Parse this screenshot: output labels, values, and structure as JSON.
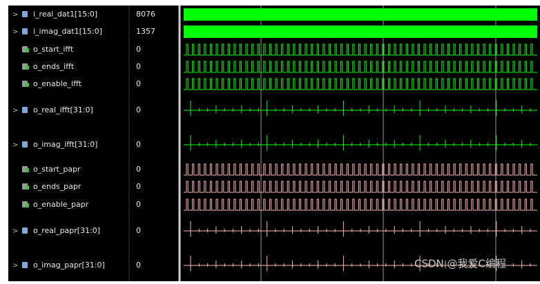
{
  "signals": [
    {
      "name": "i_real_dat1[15:0]",
      "value": 8076
    },
    {
      "name": "i_imag_dat1[15:0]",
      "value": 1357
    },
    {
      "name": "o_start_ifft",
      "value": 0
    },
    {
      "name": "o_ends_ifft",
      "value": 0
    },
    {
      "name": "o_enable_ifft",
      "value": 0
    },
    {
      "name": "o_real_ifft[31:0]",
      "value": 0
    },
    {
      "name": "o_imag_ifft[31:0]",
      "value": 0
    },
    {
      "name": "o_start_papr",
      "value": 0
    },
    {
      "name": "o_ends_papr",
      "value": 0
    },
    {
      "name": "o_enable_papr",
      "value": 0
    },
    {
      "name": "o_real_papr[31:0]",
      "value": 0
    },
    {
      "name": "o_imag_papr[31:0]",
      "value": 0
    }
  ],
  "watermark": "CSDN @我爱C编程"
}
